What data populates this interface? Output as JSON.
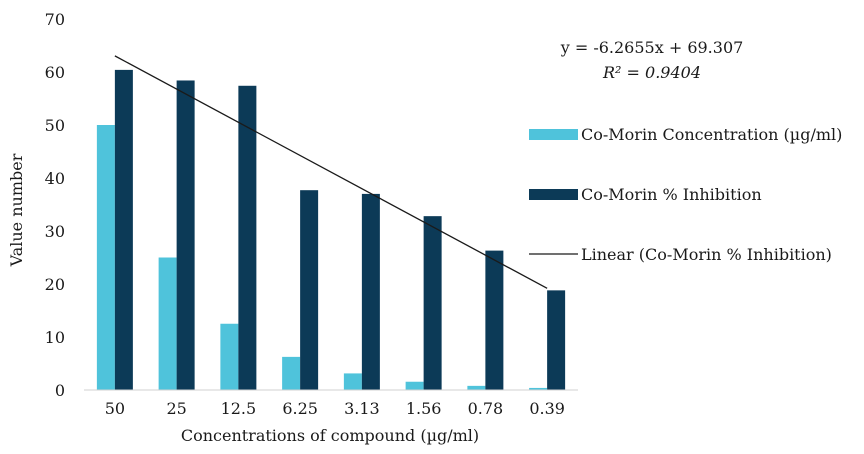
{
  "chart_data": {
    "type": "bar",
    "categories": [
      "50",
      "25",
      "12.5",
      "6.25",
      "3.13",
      "1.56",
      "0.78",
      "0.39"
    ],
    "series": [
      {
        "name": "Co-Morin Concentration (µg/ml)",
        "color": "#4fc3db",
        "values": [
          50,
          25,
          12.5,
          6.25,
          3.13,
          1.56,
          0.78,
          0.39
        ]
      },
      {
        "name": "Co-Morin % Inhibition",
        "color": "#0c3a57",
        "values": [
          60.4,
          58.4,
          57.4,
          37.7,
          37.0,
          32.8,
          26.3,
          18.8
        ]
      }
    ],
    "trendline": {
      "name": "Linear (Co-Morin % Inhibition)",
      "color": "#1a1a1a",
      "slope": -6.2655,
      "intercept": 69.307,
      "equation": "y = -6.2655x + 69.307",
      "r2_label": "R² = 0.9404"
    },
    "xlabel": "Concentrations of compound (µg/ml)",
    "ylabel": "Value number",
    "ylim": [
      0,
      70
    ],
    "yticks": [
      0,
      10,
      20,
      30,
      40,
      50,
      60,
      70
    ],
    "grid": false,
    "legend_position": "right"
  }
}
